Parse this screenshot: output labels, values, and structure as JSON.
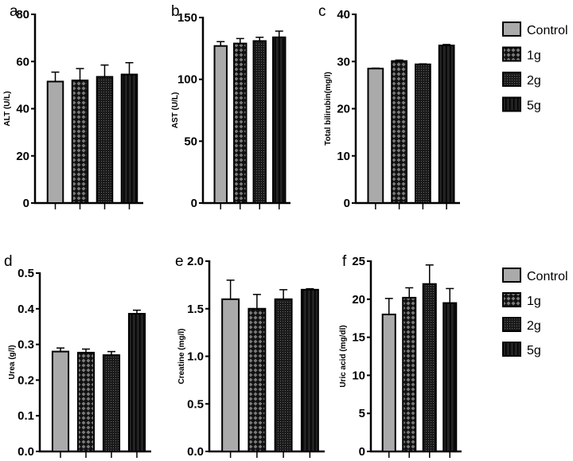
{
  "legend": {
    "entries": [
      "Control",
      "1g",
      "2g",
      "5g"
    ]
  },
  "colors": {
    "control": "#aaaaaa",
    "dark": "#1a1a1a",
    "pattern": "#777777"
  },
  "chart_data": [
    {
      "panel": "a",
      "type": "bar",
      "ylabel": "ALT (U/L)",
      "ylim": [
        0,
        80
      ],
      "ticks": [
        0,
        20,
        40,
        60,
        80
      ],
      "tick_labels": [
        "0",
        "20",
        "40",
        "60",
        "80"
      ],
      "categories": [
        "Control",
        "1g",
        "2g",
        "5g"
      ],
      "values": [
        51.5,
        52,
        53.5,
        54.5
      ],
      "errors": [
        4,
        5,
        5,
        5
      ]
    },
    {
      "panel": "b",
      "type": "bar",
      "ylabel": "AST (U/L)",
      "ylim": [
        0,
        150
      ],
      "ticks": [
        0,
        50,
        100,
        150
      ],
      "tick_labels": [
        "0",
        "50",
        "100",
        "150"
      ],
      "categories": [
        "Control",
        "1g",
        "2g",
        "5g"
      ],
      "values": [
        127,
        129,
        131,
        134
      ],
      "errors": [
        3.5,
        4,
        3,
        5
      ]
    },
    {
      "panel": "c",
      "type": "bar",
      "ylabel": "Total bilirubin(mg/l)",
      "ylim": [
        0,
        40
      ],
      "ticks": [
        0,
        10,
        20,
        30,
        40
      ],
      "tick_labels": [
        "0",
        "10",
        "20",
        "30",
        "40"
      ],
      "categories": [
        "Control",
        "1g",
        "2g",
        "5g"
      ],
      "values": [
        28.5,
        30.1,
        29.4,
        33.4
      ],
      "errors": [
        0.1,
        0.2,
        0.1,
        0.2
      ]
    },
    {
      "panel": "d",
      "type": "bar",
      "ylabel": "Urea (g/l)",
      "ylim": [
        0,
        0.5
      ],
      "ticks": [
        0,
        0.1,
        0.2,
        0.3,
        0.4,
        0.5
      ],
      "tick_labels": [
        "0.0",
        "0.1",
        "0.2",
        "0.3",
        "0.4",
        "0.5"
      ],
      "categories": [
        "Control",
        "1g",
        "2g",
        "5g"
      ],
      "values": [
        0.28,
        0.277,
        0.27,
        0.386
      ],
      "errors": [
        0.01,
        0.01,
        0.01,
        0.01
      ]
    },
    {
      "panel": "e",
      "type": "bar",
      "ylabel": "Creatine  (mg/l)",
      "ylim": [
        0,
        2.0
      ],
      "ticks": [
        0,
        0.5,
        1.0,
        1.5,
        2.0
      ],
      "tick_labels": [
        "0.0",
        "0.5",
        "1.0",
        "1.5",
        "2.0"
      ],
      "categories": [
        "Control",
        "1g",
        "2g",
        "5g"
      ],
      "values": [
        1.6,
        1.5,
        1.6,
        1.7
      ],
      "errors": [
        0.2,
        0.15,
        0.1,
        0.01
      ]
    },
    {
      "panel": "f",
      "type": "bar",
      "ylabel": "Uric acid  (mg/dl)",
      "ylim": [
        0,
        25
      ],
      "ticks": [
        0,
        5,
        10,
        15,
        20,
        25
      ],
      "tick_labels": [
        "0",
        "5",
        "10",
        "15",
        "20",
        "25"
      ],
      "categories": [
        "Control",
        "1g",
        "2g",
        "5g"
      ],
      "values": [
        18,
        20.2,
        22,
        19.5
      ],
      "errors": [
        2.1,
        1.3,
        2.5,
        1.9
      ]
    }
  ]
}
